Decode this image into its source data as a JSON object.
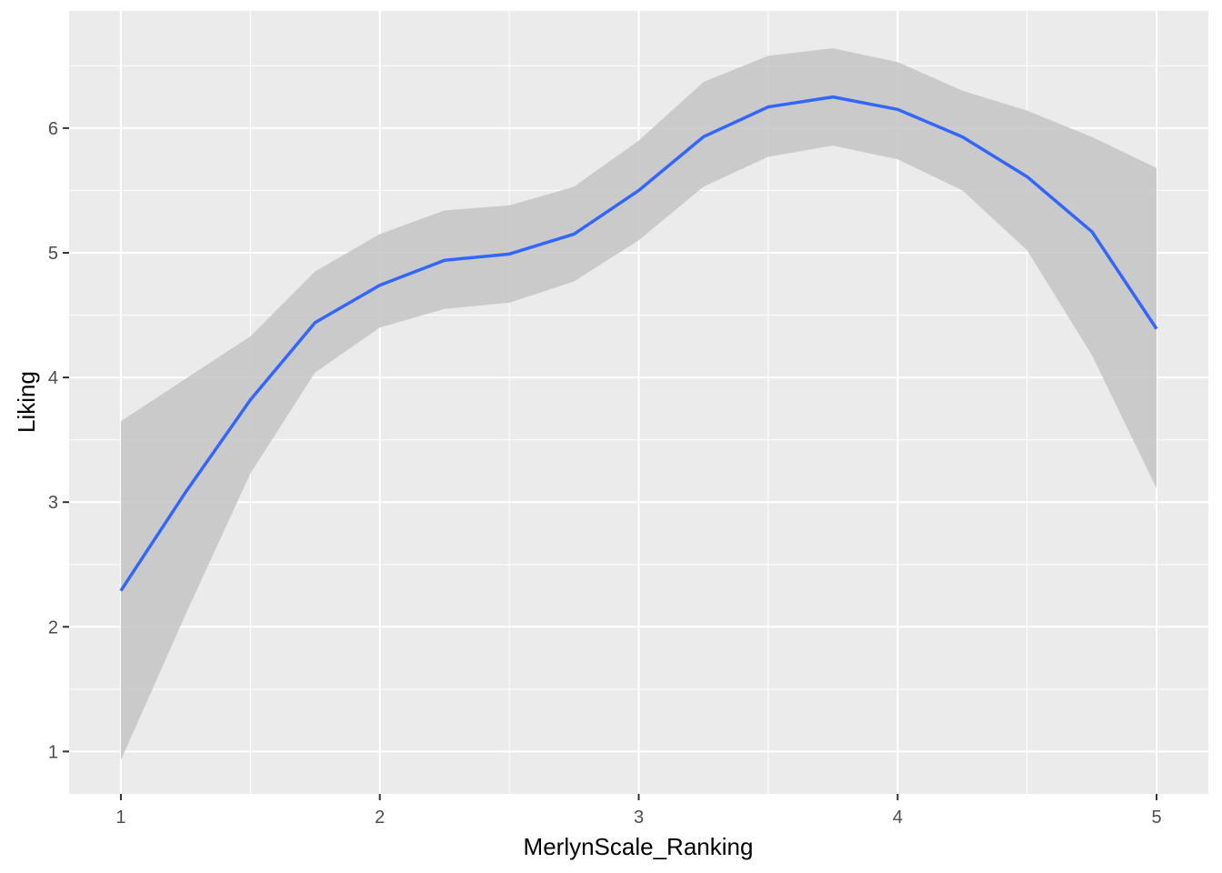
{
  "chart_data": {
    "type": "smooth",
    "x_label": "MerlynScale_Ranking",
    "y_label": "Liking",
    "x": [
      1,
      1.25,
      1.5,
      1.75,
      2,
      2.25,
      2.5,
      2.75,
      3,
      3.25,
      3.5,
      3.75,
      4,
      4.25,
      4.5,
      4.75,
      5
    ],
    "values": [
      2.29,
      3.08,
      3.82,
      4.44,
      4.74,
      4.94,
      4.99,
      5.15,
      5.5,
      5.93,
      6.17,
      6.25,
      6.15,
      5.93,
      5.61,
      5.17,
      4.39
    ],
    "lower": [
      0.93,
      2.1,
      3.23,
      4.04,
      4.4,
      4.55,
      4.6,
      4.77,
      5.1,
      5.53,
      5.77,
      5.86,
      5.75,
      5.5,
      5.02,
      4.18,
      3.11
    ],
    "upper": [
      3.65,
      3.99,
      4.33,
      4.85,
      5.15,
      5.34,
      5.38,
      5.53,
      5.9,
      6.37,
      6.58,
      6.64,
      6.53,
      6.3,
      6.14,
      5.93,
      5.68
    ],
    "color": "#3366ff",
    "ribbon_color": "#c4c4c4",
    "xlim": [
      0.8,
      5.2
    ],
    "ylim": [
      0.66,
      6.94
    ],
    "xticks": [
      1,
      2,
      3,
      4,
      5
    ],
    "yticks": [
      1,
      2,
      3,
      4,
      5,
      6
    ],
    "grid": true
  }
}
